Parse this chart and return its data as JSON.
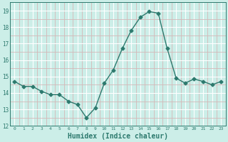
{
  "x": [
    0,
    1,
    2,
    3,
    4,
    5,
    6,
    7,
    8,
    9,
    10,
    11,
    12,
    13,
    14,
    15,
    16,
    17,
    18,
    19,
    20,
    21,
    22,
    23
  ],
  "y": [
    14.7,
    14.4,
    14.4,
    14.1,
    13.9,
    13.9,
    13.5,
    13.3,
    12.5,
    13.1,
    14.6,
    15.4,
    16.7,
    17.8,
    18.6,
    18.95,
    18.85,
    16.7,
    14.9,
    14.6,
    14.85,
    14.7,
    14.5,
    14.7
  ],
  "line_color": "#2d7a6e",
  "marker": "D",
  "marker_size": 2.5,
  "bg_color": "#cceee8",
  "grid_color_major": "#ffffff",
  "grid_color_minor": "#d4b8b8",
  "xlabel": "Humidex (Indice chaleur)",
  "xlabel_fontsize": 7,
  "xlabel_color": "#2d7a6e",
  "tick_color": "#2d7a6e",
  "ylim": [
    12,
    19.5
  ],
  "xlim": [
    -0.5,
    23.5
  ],
  "yticks": [
    12,
    13,
    14,
    15,
    16,
    17,
    18,
    19
  ],
  "xticks": [
    0,
    1,
    2,
    3,
    4,
    5,
    6,
    7,
    8,
    9,
    10,
    11,
    12,
    13,
    14,
    15,
    16,
    17,
    18,
    19,
    20,
    21,
    22,
    23
  ],
  "xtick_labels": [
    "0",
    "1",
    "2",
    "3",
    "4",
    "5",
    "6",
    "7",
    "8",
    "9",
    "10",
    "11",
    "12",
    "13",
    "14",
    "15",
    "16",
    "17",
    "18",
    "19",
    "20",
    "21",
    "22",
    "23"
  ]
}
